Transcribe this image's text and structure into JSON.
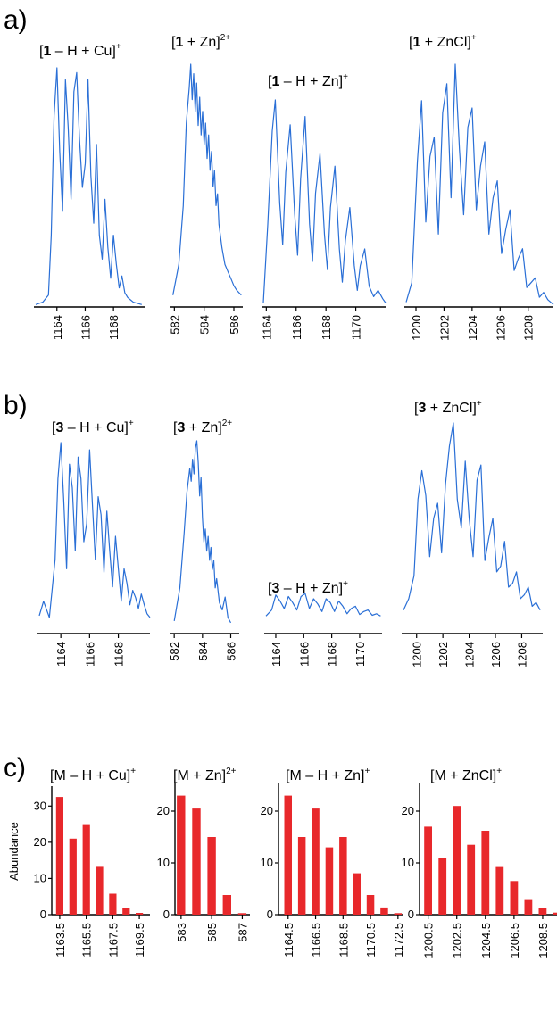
{
  "panels": [
    {
      "label": "a)"
    },
    {
      "label": "b)"
    },
    {
      "label": "c)"
    }
  ],
  "colors": {
    "trace": "#2a6fd6",
    "bar": "#e8282b",
    "axis": "#000000"
  },
  "chart_data": [
    {
      "type": "line",
      "panel": "a",
      "title": "[1 – H + Cu]+",
      "title_parts": [
        "[",
        "1",
        " – H + Cu]",
        "+"
      ],
      "xlim": [
        1162.5,
        1170.2
      ],
      "ticks": [
        1164,
        1166,
        1168
      ],
      "x": [
        1162.5,
        1163.0,
        1163.4,
        1163.6,
        1163.8,
        1164.0,
        1164.2,
        1164.4,
        1164.6,
        1164.8,
        1165.0,
        1165.2,
        1165.4,
        1165.6,
        1165.8,
        1166.0,
        1166.2,
        1166.4,
        1166.6,
        1166.8,
        1167.0,
        1167.2,
        1167.4,
        1167.6,
        1167.8,
        1168.0,
        1168.2,
        1168.4,
        1168.6,
        1168.8,
        1169.0,
        1169.2,
        1169.4,
        1170.0
      ],
      "y": [
        1,
        2,
        5,
        30,
        80,
        100,
        65,
        40,
        95,
        75,
        45,
        90,
        98,
        70,
        50,
        60,
        95,
        55,
        35,
        68,
        30,
        20,
        45,
        25,
        12,
        30,
        18,
        8,
        13,
        6,
        4,
        3,
        2,
        1
      ]
    },
    {
      "type": "line",
      "panel": "a",
      "title": "[1 + Zn]2+",
      "title_parts": [
        "[",
        "1",
        " + Zn]",
        "2+"
      ],
      "xlim": [
        581.8,
        586.6
      ],
      "ticks": [
        582,
        584,
        586
      ],
      "x": [
        581.9,
        582.3,
        582.6,
        582.8,
        583.0,
        583.1,
        583.2,
        583.3,
        583.4,
        583.5,
        583.6,
        583.7,
        583.8,
        583.9,
        584.0,
        584.1,
        584.2,
        584.3,
        584.4,
        584.5,
        584.6,
        584.7,
        584.8,
        584.9,
        585.0,
        585.2,
        585.4,
        585.6,
        585.8,
        586.0,
        586.2,
        586.5
      ],
      "y": [
        2,
        15,
        40,
        75,
        90,
        100,
        85,
        96,
        80,
        92,
        74,
        86,
        70,
        80,
        66,
        75,
        60,
        70,
        55,
        63,
        48,
        55,
        40,
        45,
        32,
        22,
        15,
        12,
        9,
        6,
        4,
        2
      ]
    },
    {
      "type": "line",
      "panel": "a",
      "title": "[1 – H + Zn]+",
      "title_parts": [
        "[",
        "1",
        " – H + Zn]",
        "+"
      ],
      "xlim": [
        1163.8,
        1172.0
      ],
      "ticks": [
        1164,
        1166,
        1168,
        1170
      ],
      "x": [
        1163.8,
        1164.1,
        1164.4,
        1164.6,
        1164.9,
        1165.1,
        1165.3,
        1165.6,
        1165.9,
        1166.1,
        1166.3,
        1166.6,
        1166.9,
        1167.1,
        1167.3,
        1167.6,
        1167.9,
        1168.1,
        1168.3,
        1168.6,
        1168.9,
        1169.1,
        1169.3,
        1169.6,
        1169.9,
        1170.1,
        1170.3,
        1170.6,
        1170.9,
        1171.2,
        1171.5,
        1171.8,
        1172.0
      ],
      "y": [
        2,
        40,
        85,
        100,
        50,
        30,
        65,
        88,
        45,
        25,
        62,
        92,
        40,
        22,
        55,
        74,
        35,
        18,
        48,
        68,
        28,
        12,
        32,
        48,
        20,
        8,
        20,
        28,
        10,
        5,
        8,
        4,
        2
      ]
    },
    {
      "type": "line",
      "panel": "a",
      "title": "[1 + ZnCl]+",
      "title_parts": [
        "[",
        "1",
        " + ZnCl]",
        "+"
      ],
      "xlim": [
        1199.3,
        1209.8
      ],
      "ticks": [
        1200,
        1202,
        1204,
        1206,
        1208
      ],
      "x": [
        1199.3,
        1199.7,
        1200.1,
        1200.4,
        1200.7,
        1201.0,
        1201.3,
        1201.6,
        1201.9,
        1202.2,
        1202.5,
        1202.8,
        1203.1,
        1203.4,
        1203.7,
        1204.0,
        1204.3,
        1204.6,
        1204.9,
        1205.2,
        1205.5,
        1205.8,
        1206.1,
        1206.4,
        1206.7,
        1207.0,
        1207.3,
        1207.6,
        1207.9,
        1208.2,
        1208.5,
        1208.8,
        1209.1,
        1209.4,
        1209.8
      ],
      "y": [
        2,
        10,
        60,
        85,
        35,
        62,
        70,
        30,
        80,
        92,
        45,
        100,
        65,
        38,
        74,
        82,
        40,
        58,
        68,
        30,
        45,
        52,
        22,
        32,
        40,
        15,
        20,
        24,
        8,
        10,
        12,
        4,
        6,
        3,
        1
      ]
    },
    {
      "type": "line",
      "panel": "b",
      "title": "[3 – H + Cu]+",
      "title_parts": [
        "[",
        "3",
        " – H + Cu]",
        "+"
      ],
      "xlim": [
        1162.5,
        1170.2
      ],
      "ticks": [
        1164,
        1166,
        1168
      ],
      "x": [
        1162.5,
        1162.8,
        1163.2,
        1163.6,
        1163.8,
        1164.0,
        1164.2,
        1164.4,
        1164.6,
        1164.8,
        1165.0,
        1165.2,
        1165.4,
        1165.6,
        1165.8,
        1166.0,
        1166.2,
        1166.4,
        1166.6,
        1166.8,
        1167.0,
        1167.2,
        1167.4,
        1167.6,
        1167.8,
        1168.0,
        1168.2,
        1168.4,
        1168.6,
        1168.8,
        1169.0,
        1169.2,
        1169.4,
        1169.6,
        1169.8,
        1170.0,
        1170.2
      ],
      "y": [
        4,
        12,
        3,
        35,
        80,
        100,
        68,
        30,
        88,
        75,
        40,
        92,
        80,
        45,
        55,
        96,
        65,
        35,
        70,
        60,
        28,
        62,
        40,
        20,
        48,
        30,
        12,
        30,
        22,
        10,
        18,
        14,
        8,
        16,
        10,
        5,
        3
      ]
    },
    {
      "type": "line",
      "panel": "b",
      "title": "[3 + Zn]2+",
      "title_parts": [
        "[",
        "3",
        " + Zn]",
        "2+"
      ],
      "xlim": [
        581.8,
        586.6
      ],
      "ticks": [
        582,
        584,
        586
      ],
      "x": [
        582.0,
        582.4,
        582.7,
        582.9,
        583.1,
        583.2,
        583.3,
        583.4,
        583.5,
        583.6,
        583.7,
        583.8,
        583.9,
        584.0,
        584.1,
        584.2,
        584.3,
        584.4,
        584.5,
        584.6,
        584.7,
        584.8,
        584.9,
        585.0,
        585.2,
        585.4,
        585.6,
        585.8,
        586.0
      ],
      "y": [
        2,
        20,
        50,
        72,
        85,
        78,
        90,
        82,
        96,
        100,
        88,
        70,
        80,
        58,
        45,
        52,
        40,
        48,
        35,
        42,
        30,
        35,
        20,
        25,
        12,
        8,
        15,
        4,
        1
      ]
    },
    {
      "type": "line",
      "panel": "b",
      "title": "[3 – H + Zn]+",
      "title_parts": [
        "[",
        "3",
        " – H + Zn]",
        "+"
      ],
      "xlim": [
        1163.3,
        1171.6
      ],
      "ticks": [
        1164,
        1166,
        1168,
        1170
      ],
      "x": [
        1163.3,
        1163.7,
        1164.0,
        1164.3,
        1164.6,
        1164.9,
        1165.2,
        1165.5,
        1165.8,
        1166.1,
        1166.4,
        1166.7,
        1167.0,
        1167.3,
        1167.6,
        1167.9,
        1168.2,
        1168.5,
        1168.8,
        1169.1,
        1169.4,
        1169.7,
        1170.0,
        1170.3,
        1170.6,
        1170.9,
        1171.2,
        1171.5
      ],
      "y": [
        2,
        10,
        30,
        22,
        12,
        28,
        20,
        10,
        28,
        32,
        12,
        25,
        18,
        8,
        25,
        20,
        8,
        22,
        15,
        5,
        12,
        15,
        4,
        8,
        10,
        3,
        5,
        2
      ]
    },
    {
      "type": "line",
      "panel": "b",
      "title": "[3 + ZnCl]+",
      "title_parts": [
        "[",
        "3",
        " + ZnCl]",
        "+"
      ],
      "xlim": [
        1199.0,
        1209.6
      ],
      "ticks": [
        1200,
        1202,
        1204,
        1206,
        1208
      ],
      "x": [
        1199.0,
        1199.4,
        1199.8,
        1200.1,
        1200.4,
        1200.7,
        1201.0,
        1201.3,
        1201.6,
        1201.9,
        1202.2,
        1202.5,
        1202.8,
        1203.1,
        1203.4,
        1203.7,
        1204.0,
        1204.3,
        1204.6,
        1204.9,
        1205.2,
        1205.5,
        1205.8,
        1206.1,
        1206.4,
        1206.7,
        1207.0,
        1207.3,
        1207.6,
        1207.9,
        1208.2,
        1208.5,
        1208.8,
        1209.1,
        1209.4
      ],
      "y": [
        2,
        8,
        20,
        60,
        75,
        62,
        30,
        50,
        58,
        32,
        68,
        88,
        100,
        60,
        45,
        80,
        50,
        30,
        70,
        78,
        28,
        40,
        50,
        22,
        25,
        38,
        14,
        16,
        22,
        8,
        10,
        14,
        4,
        6,
        2
      ]
    },
    {
      "type": "bar",
      "panel": "c",
      "title": "[M – H + Cu]+",
      "title_parts": [
        "[M – H + Cu]",
        "+"
      ],
      "ylabel": "Abundance",
      "ylim": [
        0,
        35
      ],
      "yticks": [
        0,
        10,
        20,
        30
      ],
      "xlim": [
        1162.9,
        1170.3
      ],
      "x": [
        1163.5,
        1164.5,
        1165.5,
        1166.5,
        1167.5,
        1168.5,
        1169.5
      ],
      "values": [
        32.5,
        21,
        25,
        13.2,
        5.8,
        1.8,
        0.5
      ],
      "ticks": [
        "1163.5",
        "1165.5",
        "1167.5",
        "1169.5"
      ],
      "tick_positions": [
        1163.5,
        1165.5,
        1167.5,
        1169.5
      ]
    },
    {
      "type": "bar",
      "panel": "c",
      "title": "[M + Zn]2+",
      "title_parts": [
        "[M + Zn]",
        "2+"
      ],
      "ylim": [
        0,
        25
      ],
      "yticks": [
        0,
        10,
        20
      ],
      "xlim": [
        582.6,
        587.5
      ],
      "x": [
        583,
        584,
        585,
        586,
        587
      ],
      "values": [
        23,
        20.5,
        15,
        3.8,
        0.3
      ],
      "ticks": [
        "583",
        "585",
        "587"
      ],
      "tick_positions": [
        583,
        585,
        587
      ]
    },
    {
      "type": "bar",
      "panel": "c",
      "title": "[M – H + Zn]+",
      "title_parts": [
        "[M – H + Zn]",
        "+"
      ],
      "ylim": [
        0,
        25
      ],
      "yticks": [
        0,
        10,
        20
      ],
      "xlim": [
        1163.8,
        1172.9
      ],
      "x": [
        1164.5,
        1165.5,
        1166.5,
        1167.5,
        1168.5,
        1169.5,
        1170.5,
        1171.5,
        1172.5
      ],
      "values": [
        23,
        15,
        20.5,
        13,
        15,
        8,
        3.8,
        1.4,
        0.3
      ],
      "ticks": [
        "1164.5",
        "1166.5",
        "1168.5",
        "1170.5",
        "1172.5"
      ],
      "tick_positions": [
        1164.5,
        1166.5,
        1168.5,
        1170.5,
        1172.5
      ]
    },
    {
      "type": "bar",
      "panel": "c",
      "title": "[M + ZnCl]+",
      "title_parts": [
        "[M + ZnCl]",
        "+"
      ],
      "ylim": [
        0,
        25
      ],
      "yticks": [
        0,
        10,
        20
      ],
      "xlim": [
        1199.9,
        1209.5
      ],
      "x": [
        1200.5,
        1201.5,
        1202.5,
        1203.5,
        1204.5,
        1205.5,
        1206.5,
        1207.5,
        1208.5,
        1209.5
      ],
      "values": [
        17,
        11,
        21,
        13.5,
        16.2,
        9.2,
        6.5,
        3,
        1.3,
        0.4
      ],
      "ticks": [
        "1200.5",
        "1202.5",
        "1204.5",
        "1206.5",
        "1208.5"
      ],
      "tick_positions": [
        1200.5,
        1202.5,
        1204.5,
        1206.5,
        1208.5
      ]
    }
  ]
}
